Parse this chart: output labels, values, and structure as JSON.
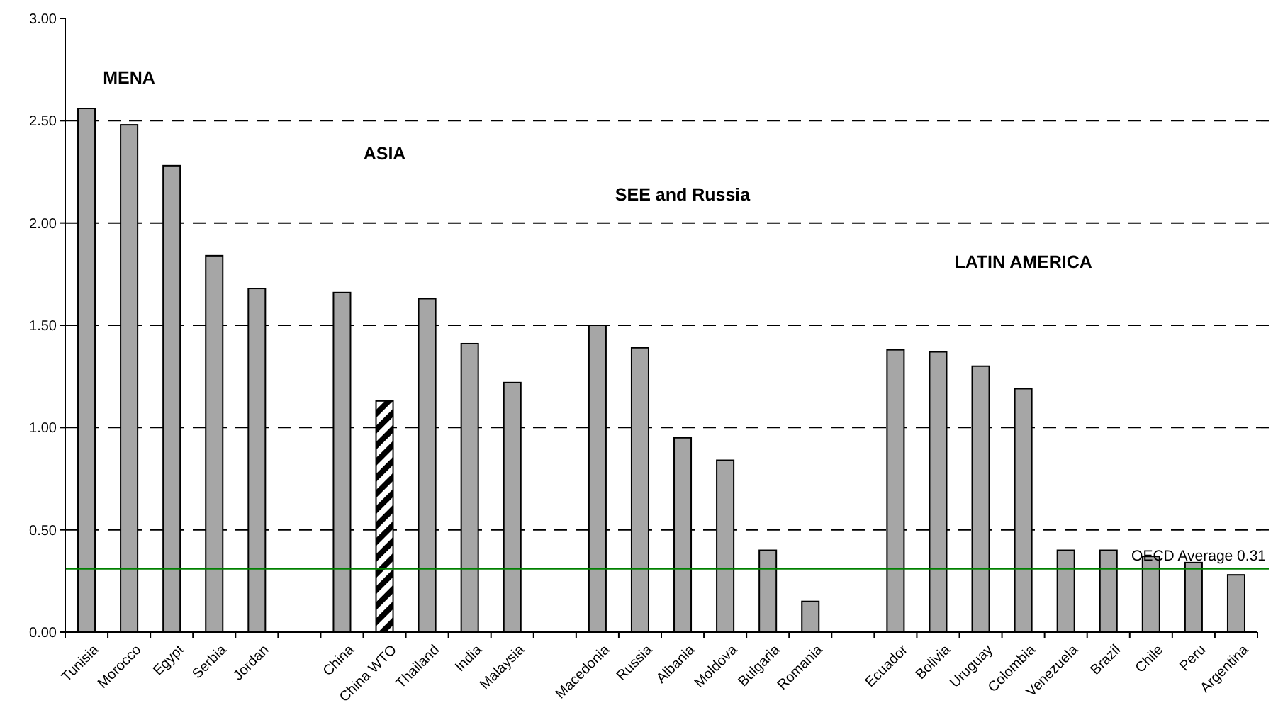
{
  "chart_data": {
    "type": "bar",
    "categories": [
      "Tunisia",
      "Morocco",
      "Egypt",
      "Serbia",
      "Jordan",
      null,
      "China",
      "China WTO",
      "Thailand",
      "India",
      "Malaysia",
      null,
      "Macedonia",
      "Russia",
      "Albania",
      "Moldova",
      "Bulgaria",
      "Romania",
      null,
      "Ecuador",
      "Bolivia",
      "Uruguay",
      "Colombia",
      "Venezuela",
      "Brazil",
      "Chile",
      "Peru",
      "Argentina"
    ],
    "values": [
      2.56,
      2.48,
      2.28,
      1.84,
      1.68,
      null,
      1.66,
      1.13,
      1.63,
      1.41,
      1.22,
      null,
      1.5,
      1.39,
      0.95,
      0.84,
      0.4,
      0.15,
      null,
      1.38,
      1.37,
      1.3,
      1.19,
      0.4,
      0.4,
      0.37,
      0.34,
      0.28
    ],
    "colors": [
      "#a6a6a6",
      "#a6a6a6",
      "#a6a6a6",
      "#a6a6a6",
      "#a6a6a6",
      "#a6a6a6",
      "#a6a6a6",
      "#000000",
      "#a6a6a6",
      "#a6a6a6",
      "#a6a6a6",
      "#a6a6a6",
      "#a6a6a6",
      "#a6a6a6",
      "#a6a6a6",
      "#a6a6a6",
      "#a6a6a6",
      "#a6a6a6",
      "#a6a6a6",
      "#a6a6a6",
      "#a6a6a6",
      "#a6a6a6",
      "#a6a6a6",
      "#a6a6a6",
      "#a6a6a6",
      "#a6a6a6",
      "#a6a6a6",
      "#a6a6a6"
    ],
    "ylim": [
      0,
      3
    ],
    "yticks": [
      {
        "value": 0,
        "label": "0.00"
      },
      {
        "value": 0.5,
        "label": "0.50"
      },
      {
        "value": 1,
        "label": "1.00"
      },
      {
        "value": 1.5,
        "label": "1.50"
      },
      {
        "value": 2,
        "label": "2.00"
      },
      {
        "value": 2.5,
        "label": "2.50"
      },
      {
        "value": 3,
        "label": "3.00"
      }
    ],
    "grid": "y",
    "ref_lines": [
      {
        "axis": "y",
        "value": 0.31,
        "label": "OECD Average 0.31",
        "color": "#008000"
      }
    ],
    "annotations": [
      "MENA",
      "ASIA",
      "SEE and Russia",
      "LATIN AMERICA"
    ]
  }
}
